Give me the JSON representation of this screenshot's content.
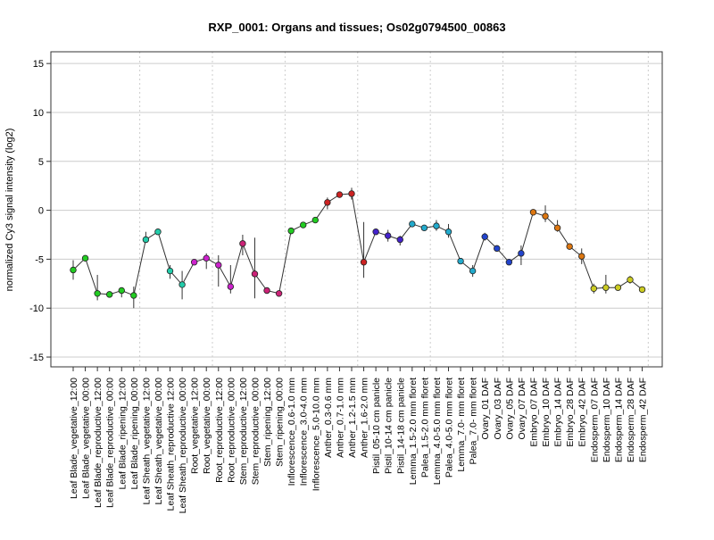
{
  "chart_data": {
    "type": "line",
    "title": "RXP_0001: Organs and tissues; Os02g0794500_00863",
    "xlabel": "",
    "ylabel": "normalized Cy3 signal intensity (log2)",
    "ylim": [
      -16,
      16.2
    ],
    "yticks": [
      -15,
      -10,
      -5,
      0,
      5,
      10,
      15
    ],
    "grid": true,
    "legend": "none",
    "categories": [
      "Leaf Blade_vegetative_12:00",
      "Leaf Blade_vegetative_00:00",
      "Leaf Blade_reproductive_12:00",
      "Leaf Blade_reproductive_00:00",
      "Leaf Blade_ripening_12:00",
      "Leaf Blade_ripening_00:00",
      "Leaf Sheath_vegetative_12:00",
      "Leaf Sheath_vegetative_00:00",
      "Leaf Sheath_reproductive 12:00",
      "Leaf Sheath_reproductive_00:00",
      "Root_vegetative_12:00",
      "Root_vegetative_00:00",
      "Root_reproductive_12:00",
      "Root_reproductive_00:00",
      "Stem_reproductive_12:00",
      "Stem_reproductive_00:00",
      "Stem_ripening_12:00",
      "Stem_ripening_00:00",
      "Inflorescence_0.6-1.0 mm",
      "Inflorescence_3.0-4.0 mm",
      "Inflorescence_5.0-10.0 mm",
      "Anther_0.3-0.6 mm",
      "Anther_0.7-1.0 mm",
      "Anther_1.2-1.5 mm",
      "Anther_1.6-2.0 mm",
      "Pistil_05-10 cm panicle",
      "Pistil_10-14 cm panicle",
      "Pistil_14-18 cm panicle",
      "Lemma_1.5-2.0 mm floret",
      "Palea_1.5-2.0 mm floret",
      "Lemma_4.0-5.0 mm floret",
      "Palea_4.0-5.0 mm floret",
      "Lemma_7.0- mm floret",
      "Palea_7.0- mm floret",
      "Ovary_01 DAF",
      "Ovary_03 DAF",
      "Ovary_05 DAF",
      "Ovary_07 DAF",
      "Embryo_07 DAF",
      "Embryo_10 DAF",
      "Embryo_14 DAF",
      "Embryo_28 DAF",
      "Embryo_42 DAF",
      "Endosperm_07 DAF",
      "Endosperm_10 DAF",
      "Endosperm_14 DAF",
      "Endosperm_28 DAF",
      "Endosperm_42 DAF"
    ],
    "values": [
      -6.1,
      -4.9,
      -8.5,
      -8.6,
      -8.2,
      -8.7,
      -3.0,
      -2.2,
      -6.2,
      -7.6,
      -5.3,
      -4.9,
      -5.6,
      -7.8,
      -3.4,
      -6.5,
      -8.2,
      -8.5,
      -2.1,
      -1.5,
      -1.0,
      0.8,
      1.6,
      1.7,
      -5.3,
      -2.2,
      -2.6,
      -3.0,
      -1.4,
      -1.8,
      -1.6,
      -2.2,
      -5.2,
      -6.2,
      -2.7,
      -3.9,
      -5.3,
      -4.4,
      -0.2,
      -0.6,
      -1.8,
      -3.7,
      -4.7,
      -8.0,
      -7.9,
      -7.9,
      -7.1,
      -8.1
    ],
    "error_bars": [
      [
        -7.1,
        -5.1
      ],
      [
        -5.2,
        -4.6
      ],
      [
        -9.2,
        -6.6
      ],
      [
        -8.9,
        -8.3
      ],
      [
        -8.9,
        -7.9
      ],
      [
        -10.0,
        -7.8
      ],
      [
        -3.3,
        -2.2
      ],
      [
        -2.5,
        -1.9
      ],
      [
        -7.0,
        -5.6
      ],
      [
        -9.1,
        -6.2
      ],
      [
        -5.5,
        -5.1
      ],
      [
        -6.0,
        -4.4
      ],
      [
        -7.8,
        -4.6
      ],
      [
        -8.5,
        -5.6
      ],
      [
        -4.6,
        -2.5
      ],
      [
        -9.0,
        -2.8
      ],
      [
        -8.4,
        -8.0
      ],
      [
        -8.7,
        -8.3
      ],
      [
        -2.3,
        -1.9
      ],
      [
        -1.7,
        -1.3
      ],
      [
        -1.3,
        -0.7
      ],
      [
        0.1,
        1.3
      ],
      [
        1.3,
        1.9
      ],
      [
        1.1,
        2.3
      ],
      [
        -6.9,
        -1.2
      ],
      [
        -2.5,
        -1.9
      ],
      [
        -3.2,
        -2.0
      ],
      [
        -3.6,
        -2.6
      ],
      [
        -1.7,
        -1.1
      ],
      [
        -2.1,
        -1.5
      ],
      [
        -2.1,
        -1.0
      ],
      [
        -2.8,
        -1.4
      ],
      [
        -5.5,
        -4.9
      ],
      [
        -6.8,
        -5.6
      ],
      [
        -3.1,
        -2.3
      ],
      [
        -4.1,
        -3.7
      ],
      [
        -5.5,
        -5.1
      ],
      [
        -5.6,
        -3.6
      ],
      [
        -0.4,
        0.0
      ],
      [
        -1.2,
        0.5
      ],
      [
        -2.2,
        -1.0
      ],
      [
        -4.0,
        -3.4
      ],
      [
        -5.5,
        -3.9
      ],
      [
        -8.5,
        -7.5
      ],
      [
        -8.5,
        -6.6
      ],
      [
        -8.1,
        -7.7
      ],
      [
        -7.5,
        -6.7
      ],
      [
        -8.3,
        -7.9
      ]
    ],
    "point_colors": [
      "#22cc22",
      "#22cc22",
      "#22cc22",
      "#22cc22",
      "#22cc22",
      "#22cc22",
      "#22ccaa",
      "#22ccaa",
      "#22ccaa",
      "#22ccaa",
      "#cc22cc",
      "#cc22cc",
      "#cc22cc",
      "#cc22cc",
      "#cc2277",
      "#cc2277",
      "#cc2277",
      "#cc2277",
      "#22cc22",
      "#22cc22",
      "#22cc22",
      "#cc2222",
      "#cc2222",
      "#cc2222",
      "#cc2222",
      "#4422cc",
      "#4422cc",
      "#4422cc",
      "#22aacc",
      "#22aacc",
      "#22aacc",
      "#22aacc",
      "#22aacc",
      "#22aacc",
      "#2244cc",
      "#2244cc",
      "#2244cc",
      "#2244cc",
      "#dd7711",
      "#dd7711",
      "#dd7711",
      "#dd7711",
      "#dd7711",
      "#cccc22",
      "#cccc22",
      "#cccc22",
      "#cccc22",
      "#cccc22"
    ]
  }
}
